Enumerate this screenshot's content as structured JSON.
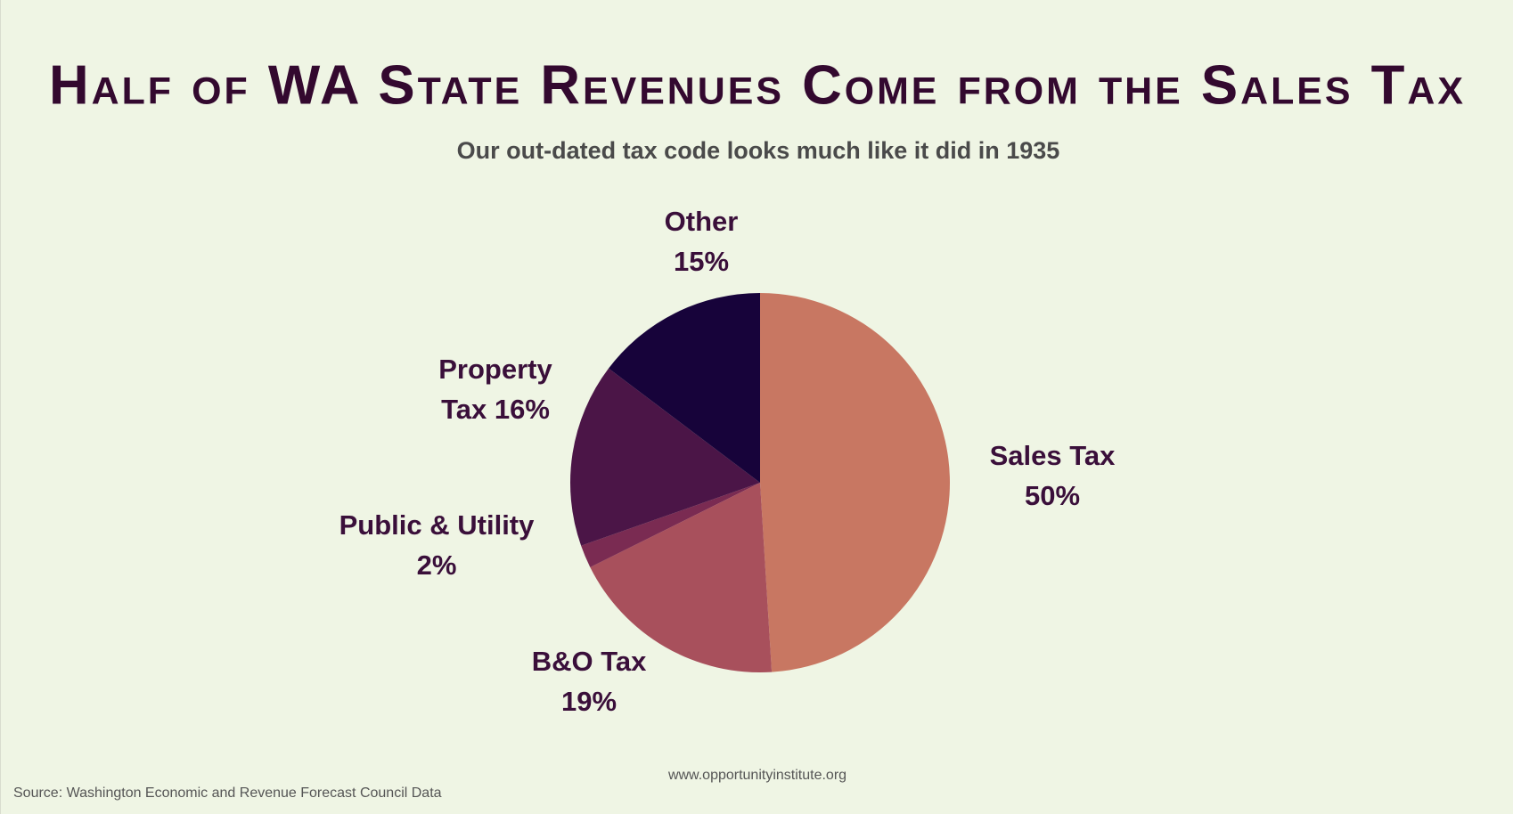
{
  "chart_data": {
    "type": "pie",
    "title": "Half of WA State Revenues Come from the Sales Tax",
    "subtitle": "Our out-dated tax code looks much like it did in 1935",
    "categories": [
      "Sales Tax",
      "B&O Tax",
      "Public & Utility",
      "Property Tax",
      "Other"
    ],
    "values": [
      50,
      19,
      2,
      16,
      15
    ],
    "value_labels": [
      "50%",
      "19%",
      "2%",
      "16%",
      "15%"
    ],
    "colors": [
      "#c87762",
      "#a8505c",
      "#7a2b52",
      "#4b1547",
      "#17033a"
    ],
    "source": "Source: Washington Economic and Revenue Forecast Council Data",
    "website": "www.opportunityinstitute.org"
  }
}
